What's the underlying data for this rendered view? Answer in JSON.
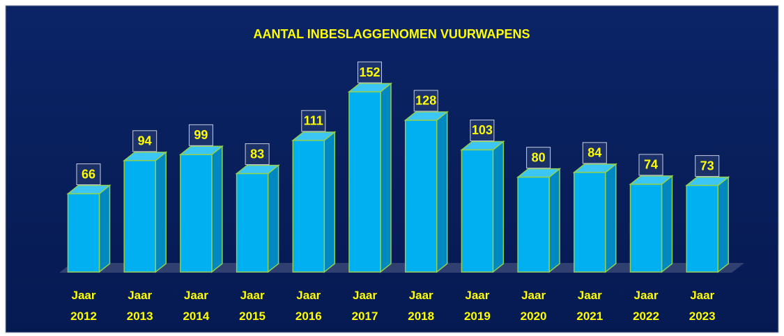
{
  "chart_data": {
    "type": "bar3d",
    "title": "AANTAL INBESLAGGENOMEN VUURWAPENS",
    "categories": [
      "Jaar 2012",
      "Jaar 2013",
      "Jaar 2014",
      "Jaar 2015",
      "Jaar 2016",
      "Jaar 2017",
      "Jaar 2018",
      "Jaar 2019",
      "Jaar 2020",
      "Jaar 2021",
      "Jaar 2022",
      "Jaar 2023"
    ],
    "values": [
      66,
      94,
      99,
      83,
      111,
      152,
      128,
      103,
      80,
      84,
      74,
      73
    ],
    "color": "#00b0f0"
  }
}
